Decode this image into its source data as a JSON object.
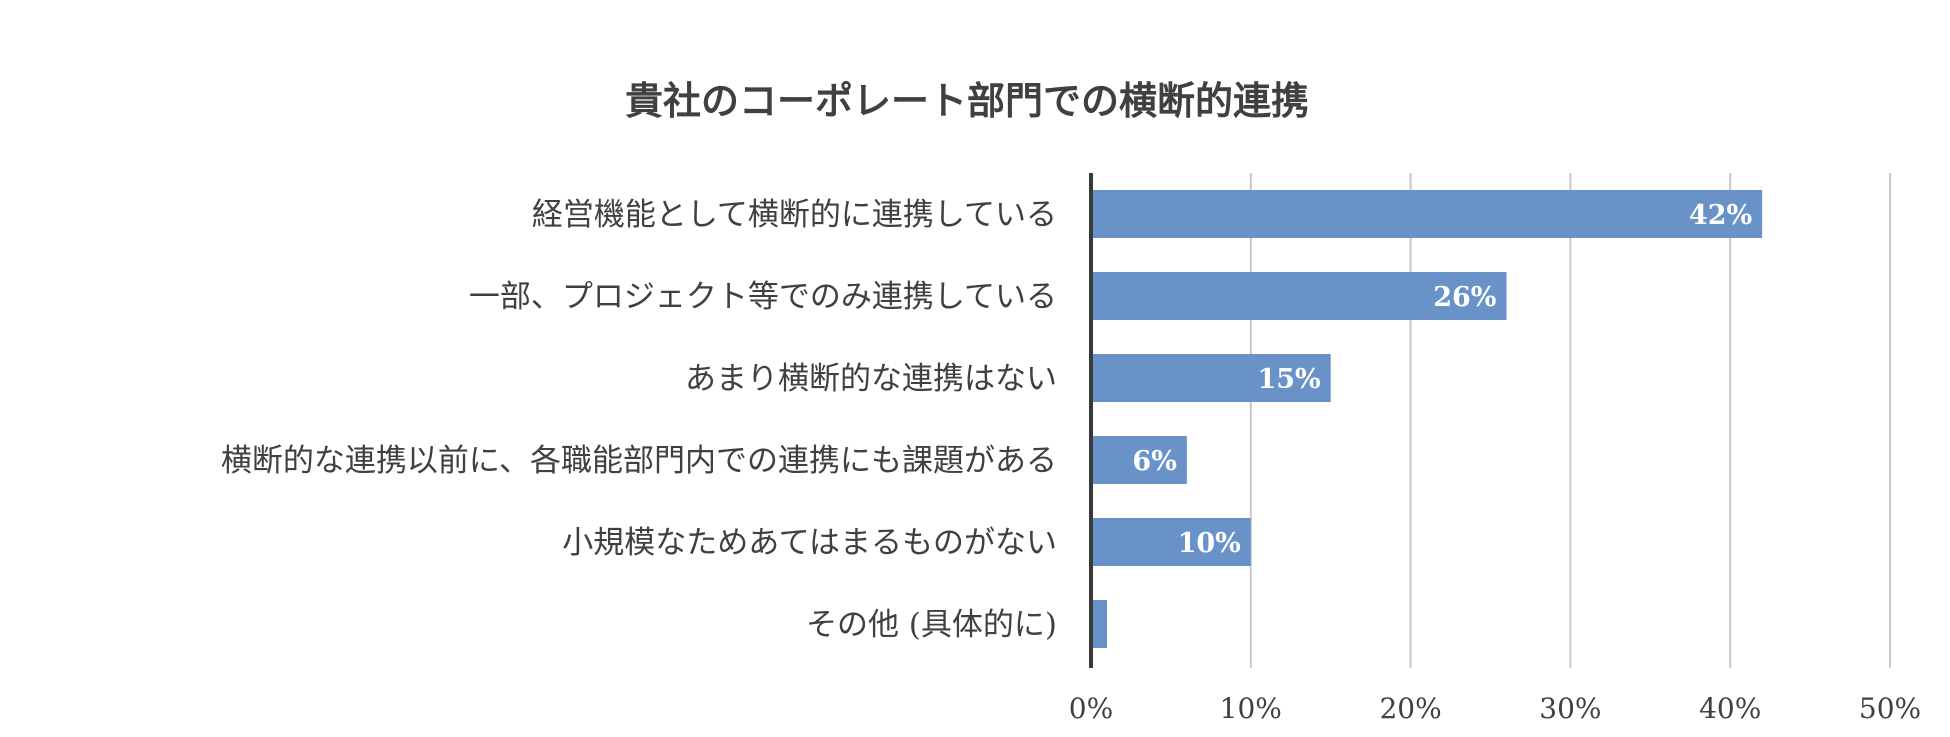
{
  "chart_data": {
    "type": "bar",
    "orientation": "horizontal",
    "title": "貴社のコーポレート部門での横断的連携",
    "categories": [
      "経営機能として横断的に連携している",
      "一部、プロジェクト等でのみ連携している",
      "あまり横断的な連携はない",
      "横断的な連携以前に、各職能部門内での連携にも課題がある",
      "小規模なためあてはまるものがない",
      "その他 (具体的に)"
    ],
    "values": [
      42,
      26,
      15,
      6,
      10,
      1
    ],
    "data_labels": [
      "42%",
      "26%",
      "15%",
      "6%",
      "10%",
      ""
    ],
    "xlim": [
      0,
      50
    ],
    "xticks": [
      "0%",
      "10%",
      "20%",
      "30%",
      "40%",
      "50%"
    ],
    "xtick_values": [
      0,
      10,
      20,
      30,
      40,
      50
    ],
    "grid": true,
    "legend": "none",
    "colors": {
      "bar": "#6993c8",
      "axis": "#3a3a3a",
      "grid": "#c8c8c8",
      "text": "#404040",
      "data_label": "#ffffff"
    }
  }
}
